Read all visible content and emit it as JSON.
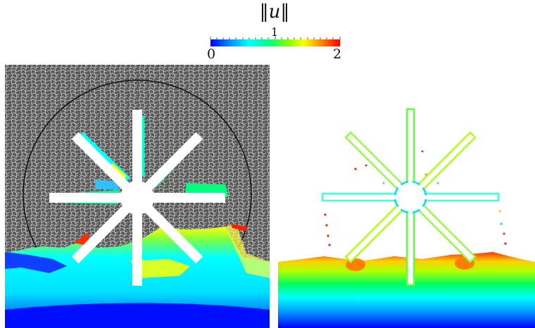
{
  "colorbar": {
    "title": "‖u‖",
    "min_label": "0",
    "mid_label": "1",
    "max_label": "2",
    "colormap": [
      "#0000ff",
      "#00a0ff",
      "#00ffff",
      "#00ff80",
      "#7fff00",
      "#ffff00",
      "#ff8000",
      "#ff0000"
    ]
  },
  "left_panel": {
    "background_color": "#5a5a5a",
    "mesh_color": "#ffffff",
    "circle_color": "#111111"
  },
  "right_panel": {
    "background_color": "#ffffff"
  },
  "colors": {
    "water_low": "#0000ff",
    "water_mid": "#00ffff",
    "water_high": "#ffff00",
    "splash": "#ff0000"
  }
}
